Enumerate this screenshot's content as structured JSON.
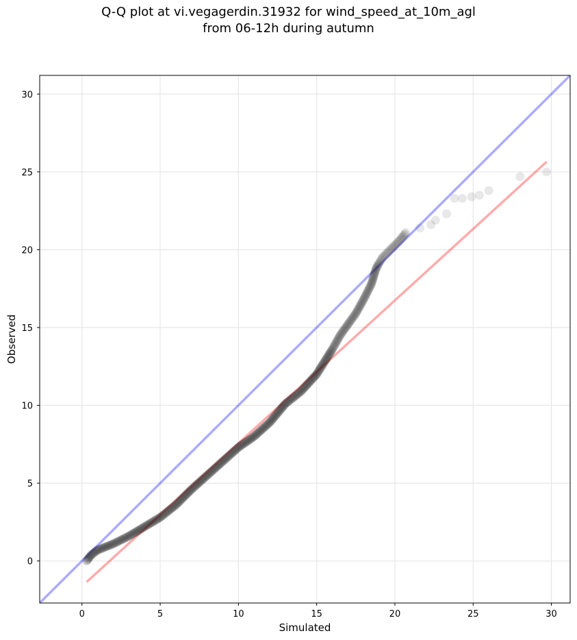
{
  "chart_data": {
    "type": "scatter",
    "title_lines": [
      "Q-Q plot at vi.vegagerdin.31932 for wind_speed_at_10m_agl",
      "from 06-12h during autumn"
    ],
    "xlabel": "Simulated",
    "ylabel": "Observed",
    "xlim": [
      -2.7,
      31.2
    ],
    "ylim": [
      -2.7,
      31.2
    ],
    "x_ticks": [
      0,
      5,
      10,
      15,
      20,
      25,
      30
    ],
    "y_ticks": [
      0,
      5,
      10,
      15,
      20,
      25,
      30
    ],
    "grid": true,
    "colors": {
      "points": "#000000",
      "identity_line": "#0000ff",
      "fit_line": "#ff0000",
      "grid": "#e6e6e6"
    },
    "series": [
      {
        "role": "quantiles",
        "curve_knots": [
          [
            0.3,
            0.0
          ],
          [
            0.6,
            0.4
          ],
          [
            1.0,
            0.7
          ],
          [
            2.0,
            1.1
          ],
          [
            3.0,
            1.6
          ],
          [
            4.0,
            2.2
          ],
          [
            5.0,
            2.8
          ],
          [
            6.0,
            3.6
          ],
          [
            7.0,
            4.6
          ],
          [
            8.0,
            5.5
          ],
          [
            9.0,
            6.4
          ],
          [
            10.0,
            7.3
          ],
          [
            11.0,
            8.0
          ],
          [
            12.0,
            8.9
          ],
          [
            13.0,
            10.1
          ],
          [
            14.0,
            10.9
          ],
          [
            15.0,
            12.0
          ],
          [
            15.5,
            12.8
          ],
          [
            16.0,
            13.6
          ],
          [
            16.5,
            14.5
          ],
          [
            17.0,
            15.2
          ],
          [
            17.5,
            15.9
          ],
          [
            18.0,
            16.8
          ],
          [
            18.5,
            17.8
          ],
          [
            18.8,
            18.8
          ],
          [
            19.2,
            19.5
          ],
          [
            19.7,
            20.0
          ],
          [
            20.3,
            20.6
          ],
          [
            20.7,
            21.1
          ]
        ],
        "tail_points": [
          [
            21.6,
            21.4
          ],
          [
            22.3,
            21.6
          ],
          [
            22.6,
            21.9
          ],
          [
            23.3,
            22.3
          ],
          [
            23.8,
            23.3
          ],
          [
            24.3,
            23.3
          ],
          [
            24.9,
            23.4
          ],
          [
            25.4,
            23.5
          ],
          [
            26.0,
            23.8
          ],
          [
            28.0,
            24.7
          ],
          [
            29.7,
            25.0
          ]
        ]
      },
      {
        "role": "identity_line",
        "x": [
          -2.7,
          31.2
        ],
        "y": [
          -2.7,
          31.2
        ]
      },
      {
        "role": "fit_line",
        "x": [
          0.3,
          29.7
        ],
        "y": [
          -1.35,
          25.65
        ]
      }
    ]
  }
}
